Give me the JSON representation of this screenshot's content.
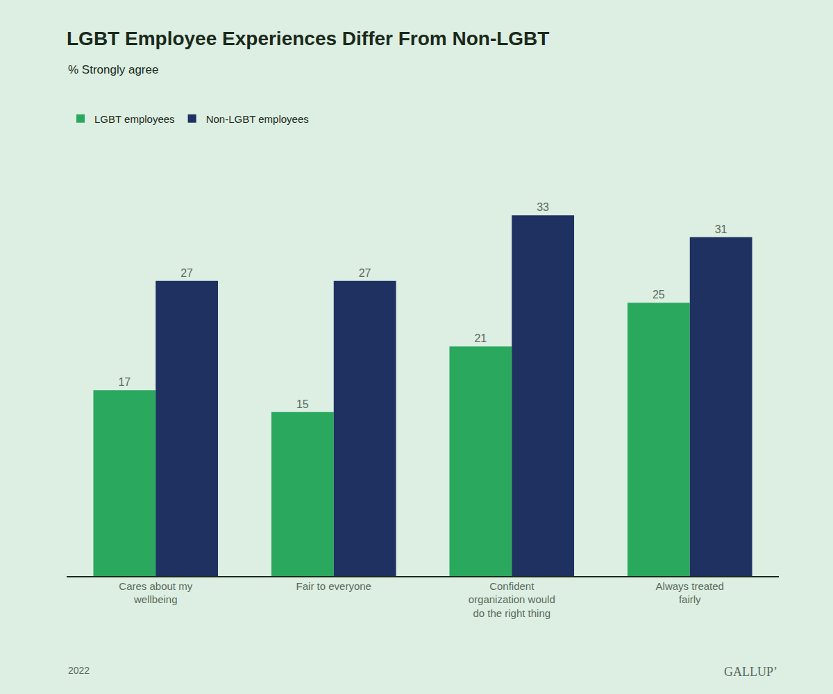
{
  "chart_data": {
    "type": "bar",
    "title": "LGBT Employee Experiences Differ From Non-LGBT",
    "subtitle": "% Strongly agree",
    "categories": [
      "Cares about my\nwellbeing",
      "Fair to everyone",
      "Confident\norganization would\ndo the right thing",
      "Always treated\nfairly"
    ],
    "series": [
      {
        "name": "LGBT employees",
        "color": "#29a85e",
        "values": [
          17,
          15,
          21,
          25
        ]
      },
      {
        "name": "Non-LGBT employees",
        "color": "#1e3160",
        "values": [
          27,
          27,
          33,
          31
        ]
      }
    ],
    "ylim": [
      0,
      40
    ],
    "grid": false,
    "legend": "upper left",
    "data_labels": true,
    "tick_labels": "x",
    "annotations": [
      "2022",
      "GALLUPʼ"
    ]
  }
}
